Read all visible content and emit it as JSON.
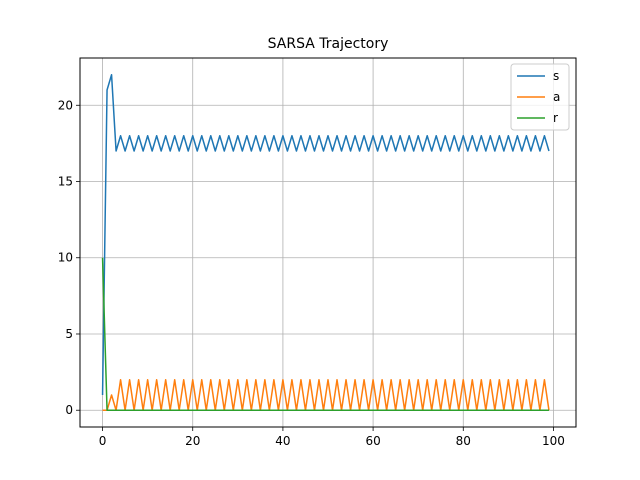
{
  "chart_data": {
    "type": "line",
    "title": "SARSA Trajectory",
    "xlabel": "",
    "ylabel": "",
    "xlim": [
      -5,
      105
    ],
    "ylim": [
      -1.1,
      23.1
    ],
    "xticks": [
      0,
      20,
      40,
      60,
      80,
      100
    ],
    "yticks": [
      0,
      5,
      10,
      15,
      20
    ],
    "grid": true,
    "legend_position": "top-right",
    "x": [
      0,
      1,
      2,
      3,
      4,
      5,
      6,
      7,
      8,
      9,
      10,
      11,
      12,
      13,
      14,
      15,
      16,
      17,
      18,
      19,
      20,
      21,
      22,
      23,
      24,
      25,
      26,
      27,
      28,
      29,
      30,
      31,
      32,
      33,
      34,
      35,
      36,
      37,
      38,
      39,
      40,
      41,
      42,
      43,
      44,
      45,
      46,
      47,
      48,
      49,
      50,
      51,
      52,
      53,
      54,
      55,
      56,
      57,
      58,
      59,
      60,
      61,
      62,
      63,
      64,
      65,
      66,
      67,
      68,
      69,
      70,
      71,
      72,
      73,
      74,
      75,
      76,
      77,
      78,
      79,
      80,
      81,
      82,
      83,
      84,
      85,
      86,
      87,
      88,
      89,
      90,
      91,
      92,
      93,
      94,
      95,
      96,
      97,
      98,
      99
    ],
    "series": [
      {
        "name": "s",
        "color": "#1f77b4",
        "values": [
          1,
          21,
          22,
          17,
          18,
          17,
          18,
          17,
          18,
          17,
          18,
          17,
          18,
          17,
          18,
          17,
          18,
          17,
          18,
          17,
          18,
          17,
          18,
          17,
          18,
          17,
          18,
          17,
          18,
          17,
          18,
          17,
          18,
          17,
          18,
          17,
          18,
          17,
          18,
          17,
          18,
          17,
          18,
          17,
          18,
          17,
          18,
          17,
          18,
          17,
          18,
          17,
          18,
          17,
          18,
          17,
          18,
          17,
          18,
          17,
          18,
          17,
          18,
          17,
          18,
          17,
          18,
          17,
          18,
          17,
          18,
          17,
          18,
          17,
          18,
          17,
          18,
          17,
          18,
          17,
          18,
          17,
          18,
          17,
          18,
          17,
          18,
          17,
          18,
          17,
          18,
          17,
          18,
          17,
          18,
          17,
          18,
          17,
          18,
          17
        ]
      },
      {
        "name": "a",
        "color": "#ff7f0e",
        "values": [
          0,
          0,
          1,
          0,
          2,
          0,
          2,
          0,
          2,
          0,
          2,
          0,
          2,
          0,
          2,
          0,
          2,
          0,
          2,
          0,
          2,
          0,
          2,
          0,
          2,
          0,
          2,
          0,
          2,
          0,
          2,
          0,
          2,
          0,
          2,
          0,
          2,
          0,
          2,
          0,
          2,
          0,
          2,
          0,
          2,
          0,
          2,
          0,
          2,
          0,
          2,
          0,
          2,
          0,
          2,
          0,
          2,
          0,
          2,
          0,
          2,
          0,
          2,
          0,
          2,
          0,
          2,
          0,
          2,
          0,
          2,
          0,
          2,
          0,
          2,
          0,
          2,
          0,
          2,
          0,
          2,
          0,
          2,
          0,
          2,
          0,
          2,
          0,
          2,
          0,
          2,
          0,
          2,
          0,
          2,
          0,
          2,
          0,
          2,
          0
        ]
      },
      {
        "name": "r",
        "color": "#2ca02c",
        "values": [
          10,
          0,
          0,
          0,
          0,
          0,
          0,
          0,
          0,
          0,
          0,
          0,
          0,
          0,
          0,
          0,
          0,
          0,
          0,
          0,
          0,
          0,
          0,
          0,
          0,
          0,
          0,
          0,
          0,
          0,
          0,
          0,
          0,
          0,
          0,
          0,
          0,
          0,
          0,
          0,
          0,
          0,
          0,
          0,
          0,
          0,
          0,
          0,
          0,
          0,
          0,
          0,
          0,
          0,
          0,
          0,
          0,
          0,
          0,
          0,
          0,
          0,
          0,
          0,
          0,
          0,
          0,
          0,
          0,
          0,
          0,
          0,
          0,
          0,
          0,
          0,
          0,
          0,
          0,
          0,
          0,
          0,
          0,
          0,
          0,
          0,
          0,
          0,
          0,
          0,
          0,
          0,
          0,
          0,
          0,
          0,
          0,
          0,
          0,
          0
        ]
      }
    ]
  }
}
